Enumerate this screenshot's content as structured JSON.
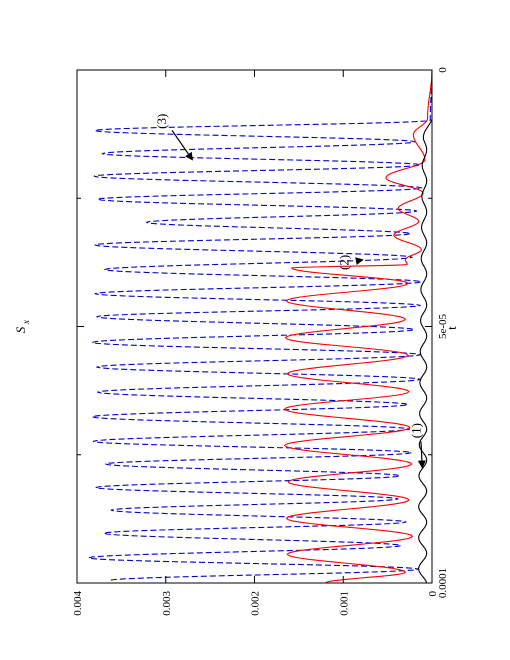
{
  "chart_data": {
    "type": "line",
    "orientation": "rotated-90-ccw",
    "xlabel": "t",
    "ylabel": "S_x",
    "xlim": [
      0,
      0.0001
    ],
    "ylim": [
      0,
      0.004
    ],
    "x_ticks": [
      {
        "value": 0,
        "label": "0"
      },
      {
        "value": 5e-05,
        "label": "5e-05"
      },
      {
        "value": 0.0001,
        "label": "0.0001"
      }
    ],
    "x_minor_ticks": [
      2.5e-05,
      7.5e-05
    ],
    "y_ticks": [
      {
        "value": 0,
        "label": "0"
      },
      {
        "value": 0.001,
        "label": "0.001"
      },
      {
        "value": 0.002,
        "label": "0.002"
      },
      {
        "value": 0.003,
        "label": "0.003"
      },
      {
        "value": 0.004,
        "label": "0.004"
      }
    ],
    "grid": false,
    "series": [
      {
        "id": "1",
        "color": "#000000",
        "style": "solid",
        "description_points": {
          "start": 9.5e-06,
          "period": 6.05e-06,
          "decay": 3e-05,
          "amp": 4.5e-05,
          "base": 6e-05,
          "amp_end": 9e-05,
          "ramp_end": 7.5e-05
        }
      },
      {
        "id": "2",
        "color": "#ff0000",
        "style": "solid",
        "peaks": [
          [
            1.26e-05,
            0.00021
          ],
          [
            2.1e-05,
            0.00052
          ],
          [
            2.7e-05,
            0.00038
          ],
          [
            3.22e-05,
            0.00043
          ],
          [
            3.7e-05,
            0.0003
          ],
          [
            3.86e-05,
            0.00158
          ],
          [
            4.5e-05,
            0.00164
          ],
          [
            5.22e-05,
            0.00165
          ],
          [
            5.92e-05,
            0.00163
          ],
          [
            6.61e-05,
            0.00166
          ],
          [
            7.32e-05,
            0.00166
          ],
          [
            8.03e-05,
            0.00162
          ],
          [
            8.74e-05,
            0.00164
          ],
          [
            9.44e-05,
            0.00163
          ],
          [
            0.0001,
            0.0012
          ]
        ],
        "troughs": [
          [
            9.4e-06,
            5e-05
          ],
          [
            1.75e-05,
            8e-05
          ],
          [
            2.4e-05,
            0.0001
          ],
          [
            2.95e-05,
            0.00015
          ],
          [
            3.5e-05,
            0.00012
          ],
          [
            3.79e-05,
            0.00028
          ],
          [
            4.16e-05,
            0.00027
          ],
          [
            4.86e-05,
            0.0003
          ],
          [
            5.56e-05,
            0.00027
          ],
          [
            6.27e-05,
            0.00026
          ],
          [
            6.97e-05,
            0.00025
          ],
          [
            7.68e-05,
            0.00023
          ],
          [
            8.38e-05,
            0.00026
          ],
          [
            9.09e-05,
            0.00022
          ],
          [
            9.79e-05,
            0.0003
          ]
        ]
      },
      {
        "id": "3",
        "color": "#0000cc",
        "style": "dashed",
        "peaks": [
          [
            1.18e-05,
            0.0038
          ],
          [
            1.63e-05,
            0.00372
          ],
          [
            2.07e-05,
            0.00381
          ],
          [
            2.52e-05,
            0.00377
          ],
          [
            2.97e-05,
            0.00322
          ],
          [
            3.41e-05,
            0.0038
          ],
          [
            3.89e-05,
            0.00369
          ],
          [
            4.36e-05,
            0.0038
          ],
          [
            4.81e-05,
            0.00378
          ],
          [
            5.31e-05,
            0.00383
          ],
          [
            5.79e-05,
            0.00378
          ],
          [
            6.28e-05,
            0.00377
          ],
          [
            6.76e-05,
            0.00383
          ],
          [
            7.24e-05,
            0.00382
          ],
          [
            7.68e-05,
            0.00368
          ],
          [
            8.14e-05,
            0.00379
          ],
          [
            8.58e-05,
            0.00362
          ],
          [
            9.03e-05,
            0.0037
          ],
          [
            9.51e-05,
            0.00387
          ],
          [
            9.95e-05,
            0.00363
          ]
        ],
        "troughs": [
          [
            9.8e-06,
            2e-05
          ],
          [
            1.4e-05,
            0.00019
          ],
          [
            1.85e-05,
            0.00013
          ],
          [
            2.3e-05,
            0.00011
          ],
          [
            2.75e-05,
            0.00017
          ],
          [
            3.19e-05,
            0.00024
          ],
          [
            3.65e-05,
            0.00022
          ],
          [
            4.13e-05,
            0.00012
          ],
          [
            4.59e-05,
            0.00013
          ],
          [
            5.06e-05,
            0.0002
          ],
          [
            5.55e-05,
            0.00013
          ],
          [
            6.03e-05,
            0.00013
          ],
          [
            6.52e-05,
            0.00027
          ],
          [
            7e-05,
            0.00025
          ],
          [
            7.46e-05,
            0.00023
          ],
          [
            7.91e-05,
            0.00036
          ],
          [
            8.36e-05,
            0.00038
          ],
          [
            8.81e-05,
            0.00029
          ],
          [
            9.27e-05,
            0.00035
          ],
          [
            9.73e-05,
            0.00015
          ]
        ]
      }
    ],
    "annotations": [
      {
        "text": "(1)",
        "target": [
          7.75e-05,
          0.00011
        ],
        "label_at": [
          7.03e-05,
          0.00013
        ]
      },
      {
        "text": "(2)",
        "target": [
          3.7e-05,
          0.00078
        ],
        "label_at": [
          3.75e-05,
          0.00094
        ]
      },
      {
        "text": "(3)",
        "target": [
          1.75e-05,
          0.0027
        ],
        "label_at": [
          1e-05,
          0.003
        ]
      }
    ]
  }
}
